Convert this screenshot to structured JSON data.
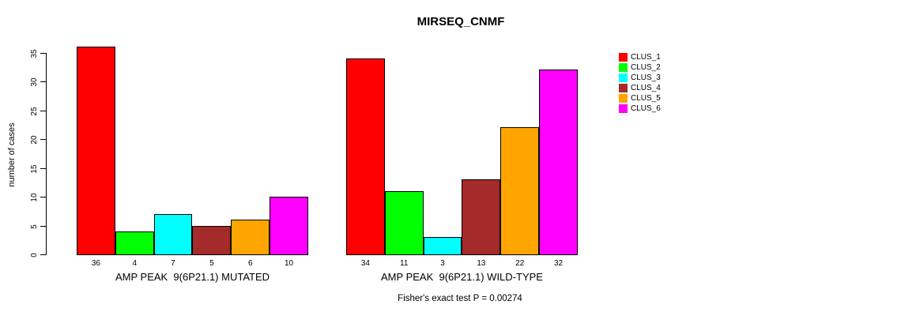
{
  "title": "MIRSEQ_CNMF",
  "chart_data": {
    "type": "bar",
    "title": "MIRSEQ_CNMF",
    "ylabel": "number of cases",
    "ylim": [
      0,
      35
    ],
    "yticks": [
      0,
      5,
      10,
      15,
      20,
      25,
      30,
      35
    ],
    "grid": false,
    "legend_position": "right",
    "categories": [
      "CLUS_1",
      "CLUS_2",
      "CLUS_3",
      "CLUS_4",
      "CLUS_5",
      "CLUS_6"
    ],
    "colors": [
      "#FF0000",
      "#00FF00",
      "#00FFFF",
      "#A52A2A",
      "#FFA500",
      "#FF00FF"
    ],
    "groups": [
      {
        "label": "AMP PEAK  9(6P21.1) MUTATED",
        "values": [
          36,
          4,
          7,
          5,
          6,
          10
        ]
      },
      {
        "label": "AMP PEAK  9(6P21.1) WILD-TYPE",
        "values": [
          34,
          11,
          3,
          13,
          22,
          32
        ]
      }
    ],
    "bar_value_labels": [
      [
        36,
        4,
        7,
        5,
        6,
        10
      ],
      [
        34,
        11,
        3,
        13,
        22,
        32
      ]
    ],
    "annotation": "Fisher's exact test P = 0.00274"
  },
  "legend": {
    "items": [
      {
        "label": "CLUS_1",
        "color": "#FF0000"
      },
      {
        "label": "CLUS_2",
        "color": "#00FF00"
      },
      {
        "label": "CLUS_3",
        "color": "#00FFFF"
      },
      {
        "label": "CLUS_4",
        "color": "#A52A2A"
      },
      {
        "label": "CLUS_5",
        "color": "#FFA500"
      },
      {
        "label": "CLUS_6",
        "color": "#FF00FF"
      }
    ]
  }
}
